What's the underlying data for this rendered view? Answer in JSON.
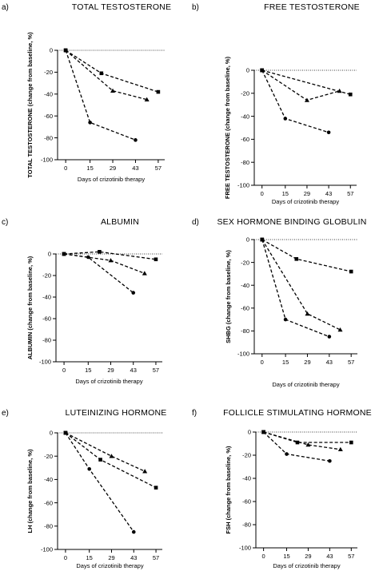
{
  "chart_data": [
    {
      "type": "line",
      "panel": "a)",
      "title": "TOTAL TESTOSTERONE",
      "xlabel": "Days of crizotinib therapy",
      "ylabel": "TOTAL TESTOSTERONE (change from baseline, %)",
      "x_ticks": [
        "0",
        "15",
        "29",
        "43",
        "57"
      ],
      "y_ticks": [
        "0",
        "-20",
        "-40",
        "-60",
        "-80",
        "-100"
      ],
      "ylim": [
        -100,
        0
      ],
      "baseline": 0,
      "series": [
        {
          "marker": "square",
          "x": [
            0,
            22,
            57
          ],
          "y": [
            0,
            -21,
            -38
          ]
        },
        {
          "marker": "triangle",
          "x": [
            0,
            29,
            50
          ],
          "y": [
            0,
            -37,
            -45
          ]
        },
        {
          "marker": "circle",
          "x": [
            0,
            15,
            43
          ],
          "y": [
            0,
            -66,
            -82
          ]
        }
      ]
    },
    {
      "type": "line",
      "panel": "b)",
      "title": "FREE TESTOSTERONE",
      "xlabel": "Days of crizotinib therapy",
      "ylabel": "FREE TESTOSTERONE (change from baseline, %)",
      "x_ticks": [
        "0",
        "15",
        "29",
        "43",
        "57"
      ],
      "y_ticks": [
        "0",
        "-20",
        "-40",
        "-60",
        "-80",
        "-100"
      ],
      "ylim": [
        -100,
        0
      ],
      "baseline": 0,
      "series": [
        {
          "marker": "square",
          "x": [
            0,
            57
          ],
          "y": [
            0,
            -21
          ]
        },
        {
          "marker": "triangle",
          "x": [
            0,
            29,
            50
          ],
          "y": [
            0,
            -26,
            -18
          ]
        },
        {
          "marker": "circle",
          "x": [
            0,
            15,
            43
          ],
          "y": [
            0,
            -42,
            -54
          ]
        }
      ]
    },
    {
      "type": "line",
      "panel": "c)",
      "title": "ALBUMIN",
      "xlabel": "Days of crizotinib therapy",
      "ylabel": "ALBUMIN (change from baseline, %)",
      "x_ticks": [
        "0",
        "15",
        "29",
        "43",
        "57"
      ],
      "y_ticks": [
        "0",
        "-20",
        "-40",
        "-60",
        "-80",
        "-100"
      ],
      "ylim": [
        -100,
        0
      ],
      "baseline": 0,
      "series": [
        {
          "marker": "square",
          "x": [
            0,
            22,
            57
          ],
          "y": [
            0,
            2,
            -5
          ]
        },
        {
          "marker": "triangle",
          "x": [
            0,
            29,
            50
          ],
          "y": [
            0,
            -6,
            -18
          ]
        },
        {
          "marker": "circle",
          "x": [
            0,
            15,
            43
          ],
          "y": [
            0,
            -3,
            -36
          ]
        }
      ]
    },
    {
      "type": "line",
      "panel": "d)",
      "title": "SEX HORMONE BINDING GLOBULIN",
      "xlabel": "Days of crizotinib therapy",
      "ylabel": "SHBG (change from baseline, %)",
      "x_ticks": [
        "0",
        "15",
        "29",
        "43",
        "57"
      ],
      "y_ticks": [
        "0",
        "-20",
        "-40",
        "-60",
        "-80",
        "-100"
      ],
      "ylim": [
        -100,
        0
      ],
      "baseline": 0,
      "series": [
        {
          "marker": "square",
          "x": [
            0,
            22,
            57
          ],
          "y": [
            0,
            -17,
            -28
          ]
        },
        {
          "marker": "triangle",
          "x": [
            0,
            29,
            50
          ],
          "y": [
            0,
            -65,
            -79
          ]
        },
        {
          "marker": "circle",
          "x": [
            0,
            15,
            43
          ],
          "y": [
            0,
            -70,
            -85
          ]
        }
      ]
    },
    {
      "type": "line",
      "panel": "e)",
      "title": "LUTEINIZING HORMONE",
      "xlabel": "Days of crizotinib therapy",
      "ylabel": "LH (change from baseline, %)",
      "x_ticks": [
        "0",
        "15",
        "29",
        "43",
        "57"
      ],
      "y_ticks": [
        "0",
        "-20",
        "-40",
        "-60",
        "-80",
        "-100"
      ],
      "ylim": [
        -100,
        0
      ],
      "baseline": 0,
      "series": [
        {
          "marker": "square",
          "x": [
            0,
            22,
            57
          ],
          "y": [
            0,
            -23,
            -47
          ]
        },
        {
          "marker": "triangle",
          "x": [
            0,
            29,
            50
          ],
          "y": [
            0,
            -20,
            -33
          ]
        },
        {
          "marker": "circle",
          "x": [
            0,
            15,
            43
          ],
          "y": [
            0,
            -31,
            -85
          ]
        }
      ]
    },
    {
      "type": "line",
      "panel": "f)",
      "title": "FOLLICLE STIMULATING HORMONE",
      "xlabel": "Days of crizotinib therapy",
      "ylabel": "FSH (change from baseline, %)",
      "x_ticks": [
        "0",
        "15",
        "29",
        "43",
        "57"
      ],
      "y_ticks": [
        "0",
        "-20",
        "-40",
        "-60",
        "-80",
        "-100"
      ],
      "ylim": [
        -100,
        0
      ],
      "baseline": 0,
      "series": [
        {
          "marker": "square",
          "x": [
            0,
            22,
            57
          ],
          "y": [
            0,
            -9,
            -9
          ]
        },
        {
          "marker": "triangle",
          "x": [
            0,
            29,
            50
          ],
          "y": [
            0,
            -11,
            -15
          ]
        },
        {
          "marker": "circle",
          "x": [
            0,
            15,
            43
          ],
          "y": [
            0,
            -19,
            -25
          ]
        }
      ]
    }
  ]
}
